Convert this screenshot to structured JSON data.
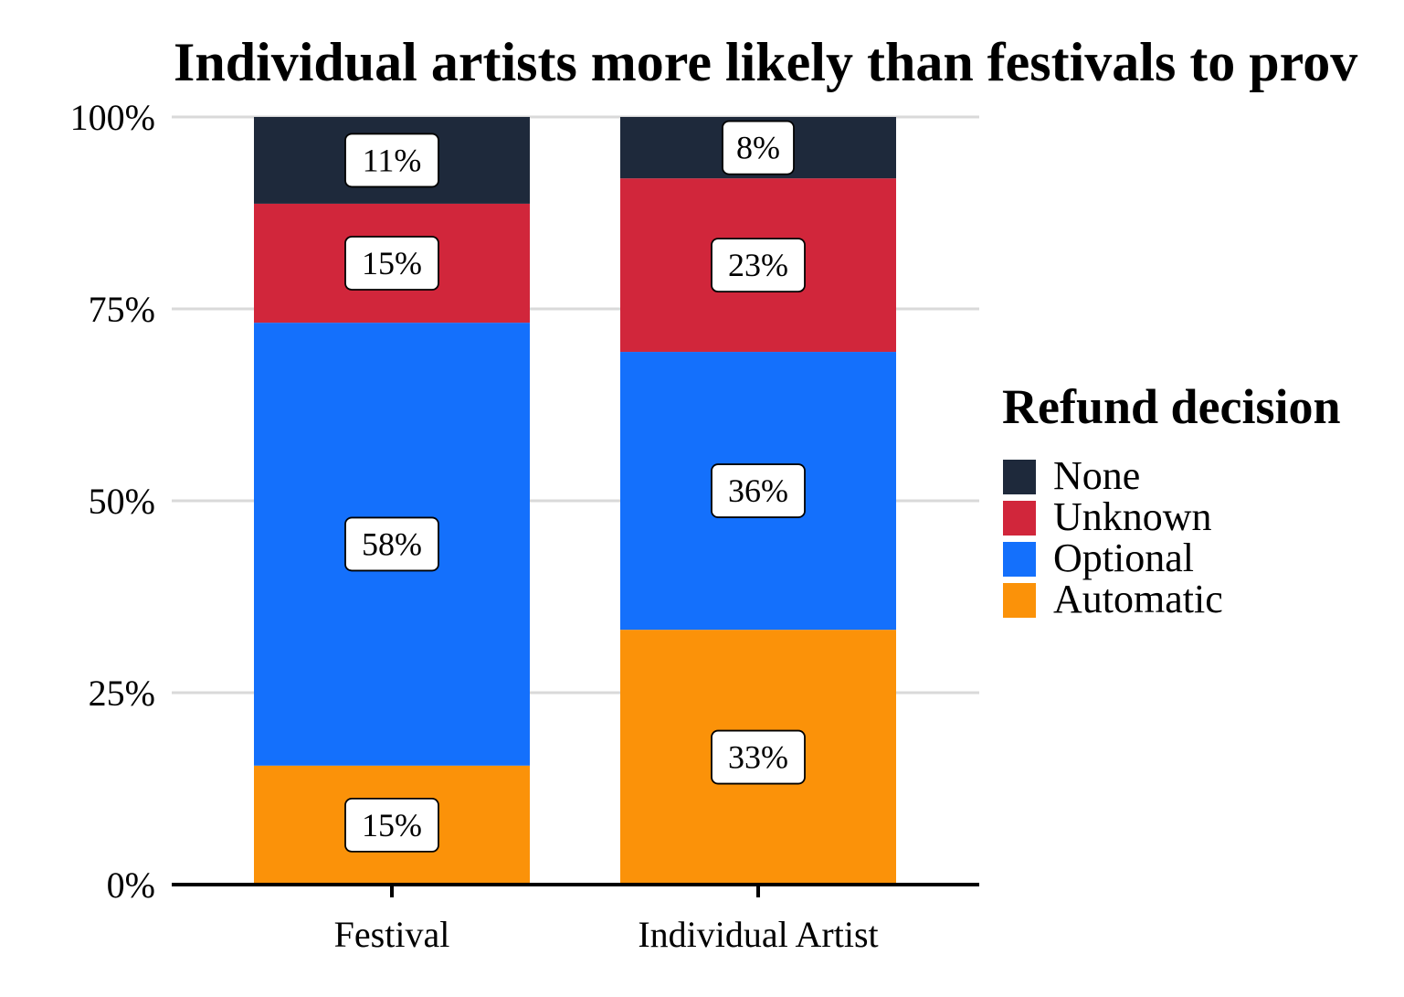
{
  "chart_data": {
    "type": "bar",
    "stacked": true,
    "title": "Individual artists more likely than festivals to prov",
    "xlabel": "",
    "ylabel": "",
    "ylim": [
      0,
      100
    ],
    "y_ticks": [
      "0%",
      "25%",
      "50%",
      "75%",
      "100%"
    ],
    "y_tick_values": [
      0,
      25,
      50,
      75,
      100
    ],
    "grid": "horizontal",
    "categories": [
      "Festival",
      "Individual Artist"
    ],
    "legend": {
      "title": "Refund decision",
      "placement": "right"
    },
    "series": [
      {
        "name": "Automatic",
        "color": "#FB9209",
        "values": [
          15.5,
          33.2
        ],
        "labels": [
          "15%",
          "33%"
        ]
      },
      {
        "name": "Optional",
        "color": "#1470FC",
        "values": [
          57.7,
          36.2
        ],
        "labels": [
          "58%",
          "36%"
        ]
      },
      {
        "name": "Unknown",
        "color": "#D1263B",
        "values": [
          15.5,
          22.6
        ],
        "labels": [
          "15%",
          "23%"
        ]
      },
      {
        "name": "None",
        "color": "#1E293B",
        "values": [
          11.3,
          8.0
        ],
        "labels": [
          "11%",
          "8%"
        ]
      }
    ],
    "legend_order": [
      "None",
      "Unknown",
      "Optional",
      "Automatic"
    ]
  }
}
